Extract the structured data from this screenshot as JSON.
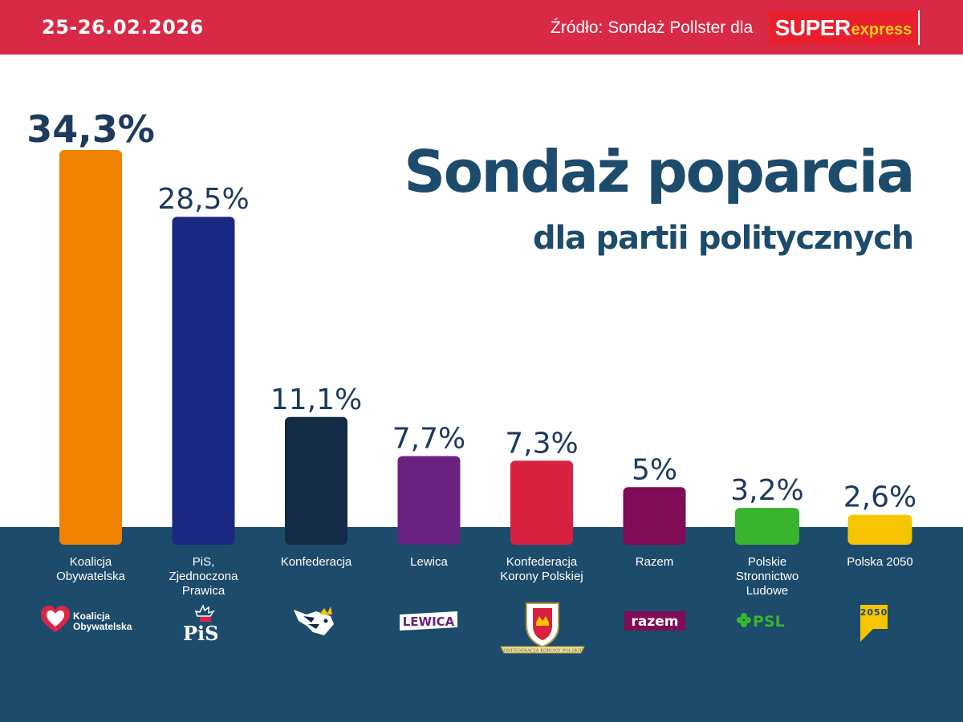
{
  "header": {
    "date": "25-26.02.2026",
    "source": "Źródło: Sondaż Pollster dla",
    "brand_super": "SUPER",
    "brand_express": "express"
  },
  "colors": {
    "header_bg": "#d82a46",
    "title_color": "#1d4b6c",
    "bottom_bg": "#1d4b6c"
  },
  "chart_data": {
    "type": "bar",
    "title": "Sondaż poparcia",
    "subtitle": "dla partii politycznych",
    "categories": [
      "Koalicja Obywatelska",
      "PiS, Zjednoczona Prawica",
      "Konfederacja",
      "Lewica",
      "Konfederacja Korony Polskiej",
      "Razem",
      "Polskie Stronnictwo Ludowe",
      "Polska 2050"
    ],
    "values": [
      34.3,
      28.5,
      11.1,
      7.7,
      7.3,
      5,
      3.2,
      2.6
    ],
    "value_labels": [
      "34,3%",
      "28,5%",
      "11,1%",
      "7,7%",
      "7,3%",
      "5%",
      "3,2%",
      "2,6%"
    ],
    "colors": [
      "#ef8300",
      "#1b2882",
      "#142b46",
      "#6a2281",
      "#d82040",
      "#800d55",
      "#38b42f",
      "#f6c400"
    ],
    "label_lines": [
      [
        "Koalicja",
        "Obywatelska"
      ],
      [
        "PiS,",
        "Zjednoczona",
        "Prawica"
      ],
      [
        "Konfederacja"
      ],
      [
        "Lewica"
      ],
      [
        "Konfederacja",
        "Korony Polskiej"
      ],
      [
        "Razem"
      ],
      [
        "Polskie",
        "Stronnictwo",
        "Ludowe"
      ],
      [
        "Polska 2050"
      ]
    ],
    "ylim": [
      0,
      34.3
    ],
    "grid": false,
    "legend": "none"
  },
  "logos": [
    {
      "icon": "koalicja-obywatelska-logo",
      "text_lines": [
        "Koalicja",
        "Obywatelska"
      ]
    },
    {
      "icon": "pis-logo",
      "text": "PiS"
    },
    {
      "icon": "konfederacja-eagle-logo"
    },
    {
      "icon": "lewica-logo",
      "text": "LEWICA"
    },
    {
      "icon": "konfederacja-korony-polskiej-crest-logo",
      "text": "KONFEDERACJA KORONY POLSKIEJ"
    },
    {
      "icon": "razem-logo",
      "text": "razem"
    },
    {
      "icon": "psl-logo",
      "text": "PSL"
    },
    {
      "icon": "polska-2050-logo",
      "text": "2050"
    }
  ]
}
